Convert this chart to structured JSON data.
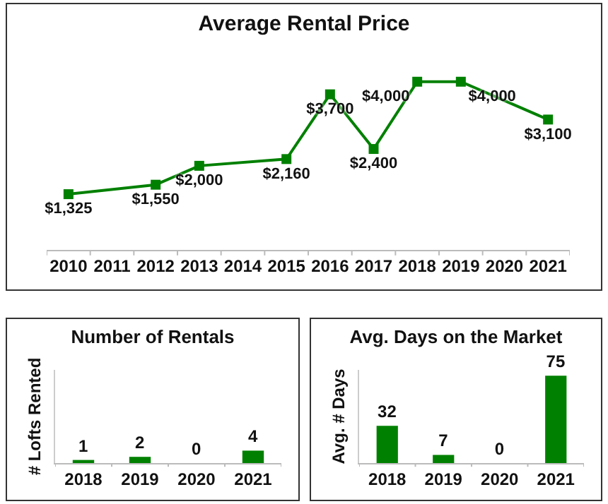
{
  "chart_data": [
    {
      "type": "line",
      "title": "Average Rental Price",
      "categories": [
        "2010",
        "2011",
        "2012",
        "2013",
        "2014",
        "2015",
        "2016",
        "2017",
        "2018",
        "2019",
        "2020",
        "2021"
      ],
      "values": [
        1325,
        null,
        1550,
        2000,
        null,
        2160,
        3700,
        2400,
        4000,
        4000,
        null,
        3100
      ],
      "value_labels": [
        "$1,325",
        null,
        "$1,550",
        "$2,000",
        null,
        "$2,160",
        "$3,700",
        "$2,400",
        "$4,000",
        "$4,000",
        null,
        "$3,100"
      ],
      "color": "#008000",
      "marker": "square",
      "tick_labels": "x"
    },
    {
      "type": "bar",
      "title": "Number of Rentals",
      "ylabel": "# Lofts Rented",
      "categories": [
        "2018",
        "2019",
        "2020",
        "2021"
      ],
      "values": [
        1,
        2,
        0,
        4
      ],
      "color": "#008000",
      "data_labels": true,
      "ylim": [
        0,
        30
      ],
      "tick_labels": "x"
    },
    {
      "type": "bar",
      "title": "Avg. Days on the Market",
      "ylabel": "Avg. # Days",
      "categories": [
        "2018",
        "2019",
        "2020",
        "2021"
      ],
      "values": [
        32,
        7,
        0,
        75
      ],
      "color": "#008000",
      "data_labels": true,
      "ylim": [
        0,
        80
      ],
      "tick_labels": "x"
    }
  ]
}
